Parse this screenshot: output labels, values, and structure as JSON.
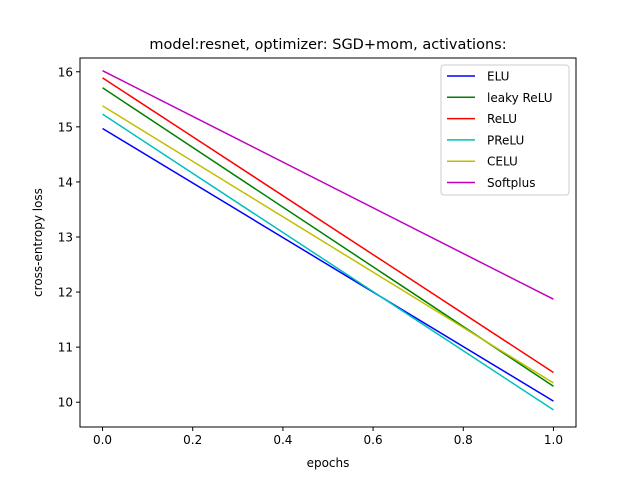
{
  "chart_data": {
    "type": "line",
    "title": "model:resnet, optimizer: SGD+mom, activations:",
    "xlabel": "epochs",
    "ylabel": "cross-entropy loss",
    "x": [
      0.0,
      1.0
    ],
    "xlim": [
      -0.05,
      1.05
    ],
    "ylim": [
      9.55,
      16.25
    ],
    "xticks": [
      0.0,
      0.2,
      0.4,
      0.6,
      0.8,
      1.0
    ],
    "xtick_labels": [
      "0.0",
      "0.2",
      "0.4",
      "0.6",
      "0.8",
      "1.0"
    ],
    "yticks": [
      10,
      11,
      12,
      13,
      14,
      15,
      16
    ],
    "ytick_labels": [
      "10",
      "11",
      "12",
      "13",
      "14",
      "15",
      "16"
    ],
    "grid": false,
    "legend_position": "top-right",
    "series": [
      {
        "name": "ELU",
        "color": "#0000ff",
        "values": [
          14.97,
          10.02
        ]
      },
      {
        "name": "leaky ReLU",
        "color": "#008000",
        "values": [
          15.71,
          10.29
        ]
      },
      {
        "name": "ReLU",
        "color": "#ff0000",
        "values": [
          15.89,
          10.54
        ]
      },
      {
        "name": "PReLU",
        "color": "#00bfbf",
        "values": [
          15.23,
          9.86
        ]
      },
      {
        "name": "CELU",
        "color": "#bfbf00",
        "values": [
          15.38,
          10.35
        ]
      },
      {
        "name": "Softplus",
        "color": "#bf00bf",
        "values": [
          16.02,
          11.87
        ]
      }
    ]
  }
}
